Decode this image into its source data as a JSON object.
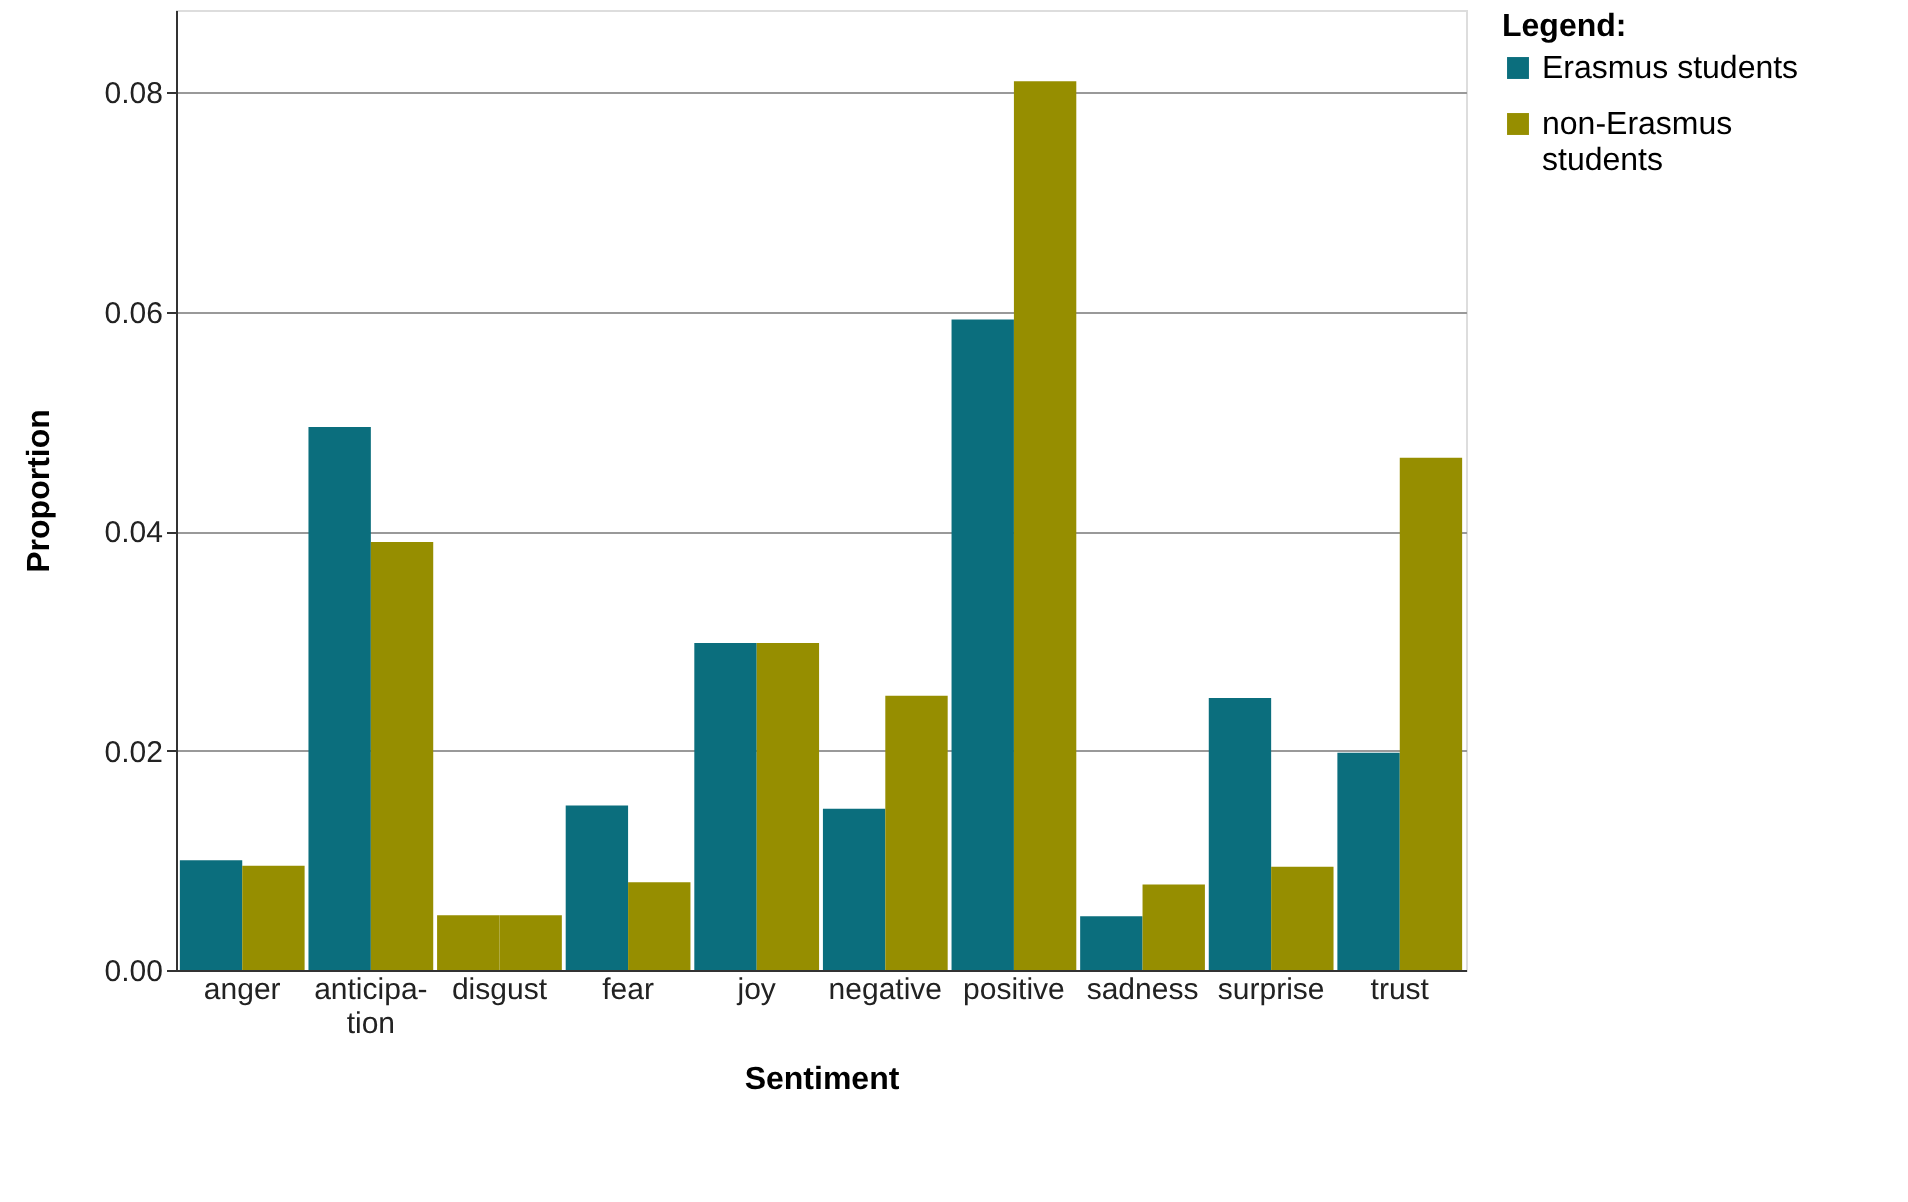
{
  "chart_data": {
    "type": "bar",
    "xlabel": "Sentiment",
    "ylabel": "Proportion",
    "legend_title": "Legend:",
    "categories": [
      "anger",
      "anticipa- tion",
      "disgust",
      "fear",
      "joy",
      "negative",
      "positive",
      "sadness",
      "surprise",
      "trust"
    ],
    "series": [
      {
        "name": "Erasmus students",
        "color": "#0b6e7d",
        "colors": [
          "#0b6e7d",
          "#0b6e7d",
          "#968e00",
          "#0b6e7d",
          "#0b6e7d",
          "#0b6e7d",
          "#0b6e7d",
          "#0b6e7d",
          "#0b6e7d",
          "#0b6e7d"
        ],
        "values": [
          0.01,
          0.0495,
          0.005,
          0.015,
          0.0298,
          0.0147,
          0.0593,
          0.0049,
          0.0248,
          0.0198
        ]
      },
      {
        "name": "non-Erasmus students",
        "color": "#968e00",
        "values": [
          0.0095,
          0.039,
          0.005,
          0.008,
          0.0298,
          0.025,
          0.081,
          0.0078,
          0.0094,
          0.0467
        ]
      }
    ],
    "ylim": [
      0,
      0.0875
    ],
    "yticks": [
      {
        "value": 0,
        "label": "0.00"
      },
      {
        "value": 0.02,
        "label": "0.02"
      },
      {
        "value": 0.04,
        "label": "0.04"
      },
      {
        "value": 0.06,
        "label": "0.06"
      },
      {
        "value": 0.08,
        "label": "0.08"
      }
    ],
    "grid": "y",
    "legend": "right"
  }
}
